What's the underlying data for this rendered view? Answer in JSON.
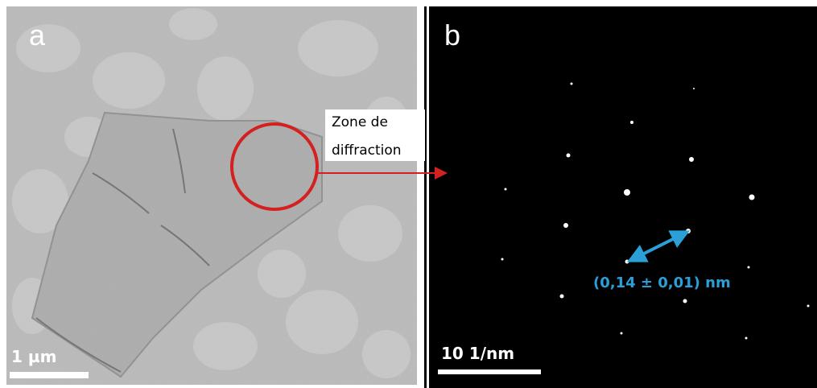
{
  "panels": [
    {
      "label": "a",
      "scale_bar": "1 µm",
      "annotation": [
        "Zone de",
        "diffraction"
      ]
    },
    {
      "label": "b",
      "scale_bar": "10 1/nm",
      "measurement": "(0,14 ± 0,01) nm"
    }
  ]
}
